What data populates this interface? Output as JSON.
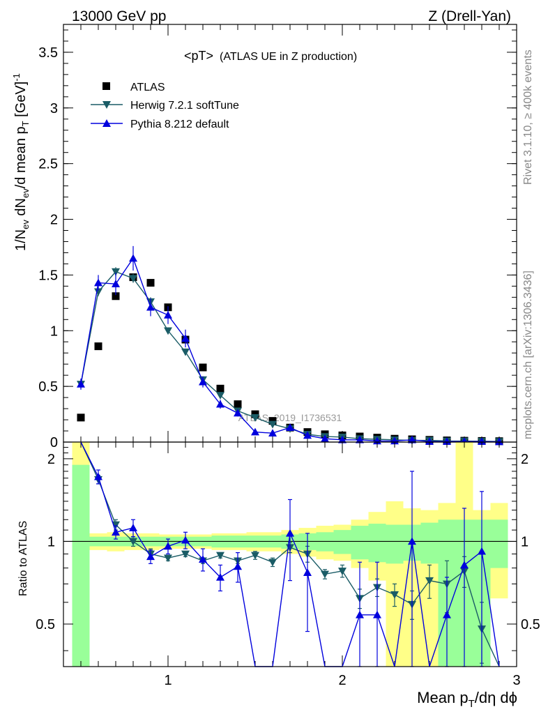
{
  "header": {
    "left": "13000 GeV pp",
    "right": "Z (Drell-Yan)"
  },
  "plot_title": "<pT>",
  "plot_subtitle": "(ATLAS UE in Z production)",
  "watermark": "ATLAS_2019_I1736531",
  "side_labels": {
    "rivet": "Rivet 3.1.10, ≥ 400k events",
    "mcplots": "mcplots.cern.ch [arXiv:1306.3436]"
  },
  "legend": [
    {
      "label": "ATLAS",
      "marker": "square",
      "color": "#000000"
    },
    {
      "label": "Herwig 7.2.1 softTune",
      "marker": "triangle-down",
      "color": "#1a5c66"
    },
    {
      "label": "Pythia 8.212 default",
      "marker": "triangle-up",
      "color": "#0000dd"
    }
  ],
  "ylabel_main_parts": [
    "1/N",
    "ev",
    " dN",
    "ev",
    "/d mean p",
    "T",
    " [GeV]",
    "-1"
  ],
  "ylabel_ratio": "Ratio to ATLAS",
  "xlabel_parts": [
    "Mean p",
    "T",
    "/dη dϕ"
  ],
  "colors": {
    "data": "#000000",
    "herwig": "#1a5c66",
    "pythia": "#0000dd",
    "band_inner": "#99ff99",
    "band_outer": "#ffff88"
  },
  "chart_data": [
    {
      "type": "scatter",
      "panel": "main",
      "xlim": [
        0.4,
        3.0
      ],
      "ylim": [
        0,
        3.75
      ],
      "xticks": [
        1,
        2,
        3
      ],
      "yticks": [
        0,
        0.5,
        1,
        1.5,
        2,
        2.5,
        3,
        3.5
      ],
      "ytick_labels": [
        "0",
        "0.5",
        "1",
        "1.5",
        "2",
        "2.5",
        "3",
        "3.5"
      ],
      "series": [
        {
          "name": "ATLAS",
          "x": [
            0.5,
            0.6,
            0.7,
            0.8,
            0.9,
            1.0,
            1.1,
            1.2,
            1.3,
            1.4,
            1.5,
            1.6,
            1.7,
            1.8,
            1.9,
            2.0,
            2.1,
            2.2,
            2.3,
            2.4,
            2.5,
            2.6,
            2.7,
            2.8,
            2.9
          ],
          "y": [
            0.22,
            0.86,
            1.31,
            1.48,
            1.43,
            1.21,
            0.92,
            0.67,
            0.48,
            0.34,
            0.25,
            0.19,
            0.13,
            0.09,
            0.07,
            0.06,
            0.05,
            0.04,
            0.03,
            0.025,
            0.02,
            0.015,
            0.012,
            0.01,
            0.008
          ]
        },
        {
          "name": "Herwig 7.2.1 softTune",
          "x": [
            0.5,
            0.6,
            0.7,
            0.8,
            0.9,
            1.0,
            1.1,
            1.2,
            1.3,
            1.4,
            1.5,
            1.6,
            1.7,
            1.8,
            1.9,
            2.0,
            2.1,
            2.2,
            2.3,
            2.4,
            2.5,
            2.6,
            2.7,
            2.8,
            2.9
          ],
          "y": [
            0.52,
            1.35,
            1.53,
            1.47,
            1.26,
            1.0,
            0.81,
            0.56,
            0.42,
            0.28,
            0.22,
            0.16,
            0.12,
            0.07,
            0.05,
            0.045,
            0.03,
            0.025,
            0.02,
            0.015,
            0.015,
            0.01,
            0.009,
            0.007,
            0.005
          ],
          "yerr": [
            0.04,
            0.04,
            0.04,
            0.04,
            0.04,
            0.03,
            0.03,
            0.02,
            0.02,
            0.02,
            0.01,
            0.01,
            0.01,
            0.01,
            0.01,
            0.005,
            0.005,
            0.005,
            0.005,
            0.005,
            0.005,
            0.005,
            0.005,
            0.005,
            0.005
          ]
        },
        {
          "name": "Pythia 8.212 default",
          "x": [
            0.5,
            0.6,
            0.7,
            0.8,
            0.9,
            1.0,
            1.1,
            1.2,
            1.3,
            1.4,
            1.5,
            1.6,
            1.7,
            1.8,
            1.9,
            2.0,
            2.1,
            2.2,
            2.3,
            2.4,
            2.5,
            2.6,
            2.7,
            2.8,
            2.9
          ],
          "y": [
            0.52,
            1.43,
            1.42,
            1.65,
            1.21,
            1.14,
            0.93,
            0.54,
            0.34,
            0.26,
            0.09,
            0.08,
            0.13,
            0.06,
            0.03,
            0.02,
            0.02,
            0.01,
            0.01,
            0.02,
            0.005,
            0.005,
            0.005,
            0.005,
            0.003
          ],
          "yerr": [
            0.05,
            0.07,
            0.1,
            0.11,
            0.08,
            0.08,
            0.08,
            0.05,
            0.04,
            0.03,
            0.02,
            0.02,
            0.02,
            0.01,
            0.01,
            0.01,
            0.01,
            0.005,
            0.005,
            0.005,
            0.005,
            0.005,
            0.005,
            0.005,
            0.005
          ]
        }
      ]
    },
    {
      "type": "line",
      "panel": "ratio",
      "xlim": [
        0.4,
        3.0
      ],
      "ylim": [
        0.35,
        2.3
      ],
      "xticks": [
        1,
        2,
        3
      ],
      "xtick_labels": [
        "1",
        "2",
        "3"
      ],
      "yticks": [
        0.5,
        1,
        2
      ],
      "ytick_labels": [
        "0.5",
        "1",
        "2"
      ],
      "reference_line": 1.0,
      "bands": {
        "x_edges": [
          0.45,
          0.55,
          0.65,
          0.75,
          0.85,
          0.95,
          1.05,
          1.15,
          1.25,
          1.35,
          1.45,
          1.55,
          1.65,
          1.75,
          1.85,
          1.95,
          2.05,
          2.15,
          2.25,
          2.35,
          2.45,
          2.55,
          2.65,
          2.75,
          2.85,
          2.95
        ],
        "inner_lo": [
          0.35,
          0.96,
          0.96,
          0.96,
          0.96,
          0.96,
          0.96,
          0.96,
          0.95,
          0.95,
          0.95,
          0.95,
          0.94,
          0.93,
          0.92,
          0.9,
          0.86,
          0.84,
          0.83,
          0.85,
          0.83,
          0.35,
          0.35,
          0.35,
          0.8
        ],
        "inner_hi": [
          1.9,
          1.04,
          1.04,
          1.04,
          1.04,
          1.04,
          1.04,
          1.04,
          1.05,
          1.05,
          1.05,
          1.05,
          1.06,
          1.07,
          1.08,
          1.1,
          1.14,
          1.16,
          1.15,
          1.15,
          1.17,
          1.2,
          1.2,
          1.2,
          1.2
        ],
        "outer_lo": [
          0.35,
          0.93,
          0.92,
          0.93,
          0.93,
          0.94,
          0.94,
          0.94,
          0.93,
          0.93,
          0.92,
          0.92,
          0.9,
          0.88,
          0.86,
          0.85,
          0.8,
          0.72,
          0.35,
          0.35,
          0.35,
          0.35,
          0.35,
          0.35,
          0.62
        ],
        "outer_hi": [
          2.3,
          1.07,
          1.08,
          1.07,
          1.07,
          1.06,
          1.06,
          1.06,
          1.07,
          1.07,
          1.08,
          1.08,
          1.1,
          1.12,
          1.14,
          1.15,
          1.2,
          1.28,
          1.4,
          1.32,
          1.3,
          1.38,
          2.3,
          1.3,
          1.38
        ]
      },
      "series": [
        {
          "name": "Herwig 7.2.1 softTune",
          "x": [
            0.5,
            0.6,
            0.7,
            0.8,
            0.9,
            1.0,
            1.1,
            1.2,
            1.3,
            1.4,
            1.5,
            1.6,
            1.7,
            1.8,
            1.9,
            2.0,
            2.1,
            2.2,
            2.3,
            2.4,
            2.5,
            2.6,
            2.7,
            2.8,
            2.9
          ],
          "y": [
            2.35,
            1.68,
            1.15,
            1.0,
            0.9,
            0.87,
            0.9,
            0.85,
            0.89,
            0.85,
            0.89,
            0.84,
            0.95,
            0.9,
            0.76,
            0.78,
            0.62,
            0.68,
            0.64,
            0.59,
            0.72,
            0.7,
            0.78,
            0.48,
            0.35
          ],
          "yerr": [
            0.1,
            0.06,
            0.05,
            0.04,
            0.04,
            0.02,
            0.02,
            0.02,
            0.02,
            0.02,
            0.03,
            0.03,
            0.04,
            0.06,
            0.03,
            0.04,
            0.05,
            0.05,
            0.06,
            0.07,
            0.1,
            0.15,
            0.1,
            0.12,
            0.1
          ]
        },
        {
          "name": "Pythia 8.212 default",
          "x": [
            0.5,
            0.6,
            0.7,
            0.8,
            0.9,
            1.0,
            1.1,
            1.2,
            1.3,
            1.4,
            1.5,
            1.6,
            1.7,
            1.8,
            1.9,
            2.0,
            2.1,
            2.2,
            2.3,
            2.4,
            2.5,
            2.6,
            2.7,
            2.8,
            2.9
          ],
          "y": [
            2.35,
            1.72,
            1.08,
            1.12,
            0.88,
            0.96,
            1.01,
            0.86,
            0.74,
            0.81,
            0.2,
            0.2,
            1.07,
            0.77,
            0.2,
            0.2,
            0.54,
            0.54,
            0.2,
            1.0,
            0.2,
            0.54,
            0.82,
            0.92,
            0.35
          ],
          "yerr": [
            0.12,
            0.1,
            0.06,
            0.08,
            0.05,
            0.06,
            0.07,
            0.08,
            0.08,
            0.1,
            0.1,
            0.1,
            0.35,
            0.3,
            0.2,
            0.2,
            0.3,
            0.3,
            0.2,
            0.8,
            0.2,
            0.2,
            0.5,
            0.6,
            0.2
          ]
        }
      ]
    }
  ]
}
